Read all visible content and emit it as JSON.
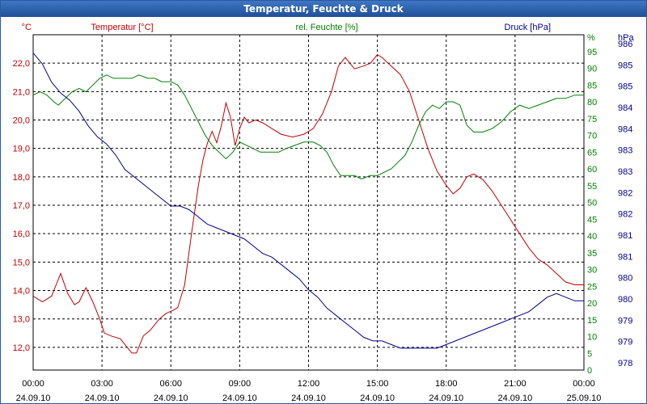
{
  "window": {
    "title": "Temperatur, Feuchte & Druck"
  },
  "chart_data": {
    "type": "line",
    "title": "Temperatur, Feuchte & Druck",
    "x_ticks": [
      {
        "time": "00:00",
        "date": "24.09.10"
      },
      {
        "time": "03:00",
        "date": "24.09.10"
      },
      {
        "time": "06:00",
        "date": "24.09.10"
      },
      {
        "time": "09:00",
        "date": "24.09.10"
      },
      {
        "time": "12:00",
        "date": "24.09.10"
      },
      {
        "time": "15:00",
        "date": "24.09.10"
      },
      {
        "time": "18:00",
        "date": "24.09.10"
      },
      {
        "time": "21:00",
        "date": "24.09.10"
      },
      {
        "time": "00:00",
        "date": "25.09.10"
      }
    ],
    "x_range_hours": [
      0,
      24
    ],
    "grid": true,
    "axes": {
      "temperature": {
        "label": "Temperatur [°C]",
        "unit": "°C",
        "color": "#c00000",
        "ylim": [
          11.2,
          23.0
        ],
        "ticks": [
          "12,0",
          "13,0",
          "14,0",
          "15,0",
          "16,0",
          "17,0",
          "18,0",
          "19,0",
          "20,0",
          "21,0",
          "22,0"
        ]
      },
      "humidity": {
        "label": "rel. Feuchte [%]",
        "unit": "%",
        "color": "#008000",
        "ylim": [
          0,
          100
        ],
        "ticks": [
          "0",
          "5",
          "10",
          "15",
          "20",
          "25",
          "30",
          "35",
          "40",
          "45",
          "50",
          "55",
          "60",
          "65",
          "70",
          "75",
          "80",
          "85",
          "90",
          "95"
        ]
      },
      "pressure": {
        "label": "Druck [hPa]",
        "unit": "hPa",
        "color": "#000090",
        "ylim": [
          977.7,
          986.9
        ],
        "ticks": [
          "978",
          "979",
          "979",
          "980",
          "980",
          "981",
          "981",
          "982",
          "982",
          "983",
          "983",
          "984",
          "984",
          "985",
          "985",
          "986"
        ]
      }
    },
    "series": [
      {
        "name": "Temperatur",
        "axis": "temperature",
        "color": "#c00000",
        "points": [
          [
            0,
            13.8
          ],
          [
            0.4,
            13.6
          ],
          [
            0.8,
            13.8
          ],
          [
            1.0,
            14.2
          ],
          [
            1.2,
            14.6
          ],
          [
            1.5,
            13.9
          ],
          [
            1.8,
            13.5
          ],
          [
            2.0,
            13.6
          ],
          [
            2.3,
            14.1
          ],
          [
            2.6,
            13.6
          ],
          [
            2.9,
            13.0
          ],
          [
            3.1,
            12.5
          ],
          [
            3.4,
            12.4
          ],
          [
            3.8,
            12.3
          ],
          [
            4.1,
            12.0
          ],
          [
            4.3,
            11.8
          ],
          [
            4.5,
            11.8
          ],
          [
            4.8,
            12.4
          ],
          [
            5.1,
            12.6
          ],
          [
            5.5,
            13.0
          ],
          [
            5.8,
            13.2
          ],
          [
            6.1,
            13.3
          ],
          [
            6.3,
            13.4
          ],
          [
            6.6,
            14.2
          ],
          [
            6.9,
            16.0
          ],
          [
            7.2,
            17.7
          ],
          [
            7.4,
            18.6
          ],
          [
            7.6,
            19.2
          ],
          [
            7.8,
            19.6
          ],
          [
            8.0,
            19.2
          ],
          [
            8.2,
            19.8
          ],
          [
            8.4,
            20.6
          ],
          [
            8.6,
            20.1
          ],
          [
            8.8,
            19.1
          ],
          [
            9.0,
            19.7
          ],
          [
            9.2,
            20.1
          ],
          [
            9.4,
            19.9
          ],
          [
            9.7,
            20.0
          ],
          [
            10.0,
            19.9
          ],
          [
            10.4,
            19.7
          ],
          [
            10.8,
            19.5
          ],
          [
            11.3,
            19.4
          ],
          [
            11.8,
            19.5
          ],
          [
            12.2,
            19.7
          ],
          [
            12.6,
            20.2
          ],
          [
            13.0,
            21.0
          ],
          [
            13.3,
            21.9
          ],
          [
            13.6,
            22.2
          ],
          [
            14.0,
            21.8
          ],
          [
            14.4,
            21.9
          ],
          [
            14.7,
            22.0
          ],
          [
            15.0,
            22.3
          ],
          [
            15.2,
            22.2
          ],
          [
            15.6,
            21.9
          ],
          [
            16.0,
            21.6
          ],
          [
            16.4,
            21.0
          ],
          [
            16.8,
            20.0
          ],
          [
            17.2,
            19.0
          ],
          [
            17.6,
            18.2
          ],
          [
            18.0,
            17.7
          ],
          [
            18.3,
            17.4
          ],
          [
            18.6,
            17.6
          ],
          [
            18.9,
            18.0
          ],
          [
            19.2,
            18.1
          ],
          [
            19.6,
            17.9
          ],
          [
            20.0,
            17.5
          ],
          [
            20.4,
            17.0
          ],
          [
            20.8,
            16.5
          ],
          [
            21.2,
            16.0
          ],
          [
            21.6,
            15.5
          ],
          [
            22.0,
            15.1
          ],
          [
            22.4,
            14.9
          ],
          [
            22.8,
            14.6
          ],
          [
            23.2,
            14.3
          ],
          [
            23.6,
            14.2
          ],
          [
            24.0,
            14.2
          ]
        ]
      },
      {
        "name": "rel. Feuchte",
        "axis": "humidity",
        "color": "#008000",
        "points": [
          [
            0,
            82
          ],
          [
            0.3,
            83
          ],
          [
            0.6,
            82
          ],
          [
            0.9,
            80
          ],
          [
            1.1,
            79
          ],
          [
            1.4,
            81
          ],
          [
            1.7,
            83
          ],
          [
            2.0,
            84
          ],
          [
            2.3,
            83
          ],
          [
            2.6,
            85
          ],
          [
            2.9,
            87
          ],
          [
            3.2,
            88
          ],
          [
            3.5,
            87
          ],
          [
            3.9,
            87
          ],
          [
            4.3,
            87
          ],
          [
            4.6,
            88
          ],
          [
            5.0,
            87
          ],
          [
            5.3,
            87
          ],
          [
            5.6,
            86
          ],
          [
            6.0,
            86
          ],
          [
            6.3,
            85
          ],
          [
            6.6,
            82
          ],
          [
            6.9,
            78
          ],
          [
            7.2,
            74
          ],
          [
            7.5,
            70
          ],
          [
            7.8,
            67
          ],
          [
            8.1,
            65
          ],
          [
            8.4,
            63
          ],
          [
            8.7,
            65
          ],
          [
            9.0,
            68
          ],
          [
            9.3,
            67
          ],
          [
            9.6,
            66
          ],
          [
            9.9,
            65
          ],
          [
            10.3,
            65
          ],
          [
            10.7,
            65
          ],
          [
            11.0,
            66
          ],
          [
            11.4,
            67
          ],
          [
            11.8,
            68
          ],
          [
            12.2,
            68
          ],
          [
            12.5,
            67
          ],
          [
            12.8,
            65
          ],
          [
            13.1,
            61
          ],
          [
            13.4,
            58
          ],
          [
            13.7,
            58
          ],
          [
            14.0,
            58
          ],
          [
            14.3,
            57
          ],
          [
            14.7,
            58
          ],
          [
            15.0,
            58
          ],
          [
            15.3,
            59
          ],
          [
            15.6,
            60
          ],
          [
            15.9,
            62
          ],
          [
            16.2,
            64
          ],
          [
            16.5,
            68
          ],
          [
            16.8,
            73
          ],
          [
            17.1,
            77
          ],
          [
            17.4,
            79
          ],
          [
            17.7,
            78
          ],
          [
            18.0,
            80
          ],
          [
            18.3,
            80
          ],
          [
            18.6,
            79
          ],
          [
            18.9,
            73
          ],
          [
            19.2,
            71
          ],
          [
            19.6,
            71
          ],
          [
            20.0,
            72
          ],
          [
            20.4,
            74
          ],
          [
            20.8,
            77
          ],
          [
            21.2,
            79
          ],
          [
            21.6,
            78
          ],
          [
            22.0,
            79
          ],
          [
            22.4,
            80
          ],
          [
            22.8,
            81
          ],
          [
            23.2,
            81
          ],
          [
            23.6,
            82
          ],
          [
            24.0,
            82
          ]
        ]
      },
      {
        "name": "Druck",
        "axis": "pressure",
        "color": "#000090",
        "points": [
          [
            0,
            986.4
          ],
          [
            0.4,
            986.1
          ],
          [
            0.8,
            985.6
          ],
          [
            1.2,
            985.3
          ],
          [
            1.6,
            985.1
          ],
          [
            2.0,
            984.8
          ],
          [
            2.4,
            984.4
          ],
          [
            2.8,
            984.1
          ],
          [
            3.2,
            983.9
          ],
          [
            3.6,
            983.6
          ],
          [
            4.0,
            983.2
          ],
          [
            4.4,
            983.0
          ],
          [
            4.8,
            982.8
          ],
          [
            5.2,
            982.6
          ],
          [
            5.6,
            982.4
          ],
          [
            6.0,
            982.2
          ],
          [
            6.4,
            982.2
          ],
          [
            6.8,
            982.1
          ],
          [
            7.2,
            981.9
          ],
          [
            7.6,
            981.7
          ],
          [
            8.0,
            981.6
          ],
          [
            8.4,
            981.5
          ],
          [
            8.8,
            981.4
          ],
          [
            9.2,
            981.3
          ],
          [
            9.6,
            981.1
          ],
          [
            10.0,
            980.9
          ],
          [
            10.4,
            980.8
          ],
          [
            10.8,
            980.6
          ],
          [
            11.2,
            980.4
          ],
          [
            11.6,
            980.2
          ],
          [
            12.0,
            979.9
          ],
          [
            12.4,
            979.7
          ],
          [
            12.8,
            979.4
          ],
          [
            13.2,
            979.2
          ],
          [
            13.6,
            979.0
          ],
          [
            14.0,
            978.8
          ],
          [
            14.4,
            978.6
          ],
          [
            14.8,
            978.5
          ],
          [
            15.2,
            978.5
          ],
          [
            15.6,
            978.4
          ],
          [
            16.0,
            978.3
          ],
          [
            16.4,
            978.3
          ],
          [
            16.8,
            978.3
          ],
          [
            17.2,
            978.3
          ],
          [
            17.6,
            978.3
          ],
          [
            18.0,
            978.4
          ],
          [
            18.4,
            978.5
          ],
          [
            18.8,
            978.6
          ],
          [
            19.2,
            978.7
          ],
          [
            19.6,
            978.8
          ],
          [
            20.0,
            978.9
          ],
          [
            20.4,
            979.0
          ],
          [
            20.8,
            979.1
          ],
          [
            21.2,
            979.2
          ],
          [
            21.6,
            979.3
          ],
          [
            22.0,
            979.5
          ],
          [
            22.4,
            979.7
          ],
          [
            22.8,
            979.8
          ],
          [
            23.2,
            979.7
          ],
          [
            23.6,
            979.6
          ],
          [
            24.0,
            979.6
          ]
        ]
      }
    ]
  }
}
